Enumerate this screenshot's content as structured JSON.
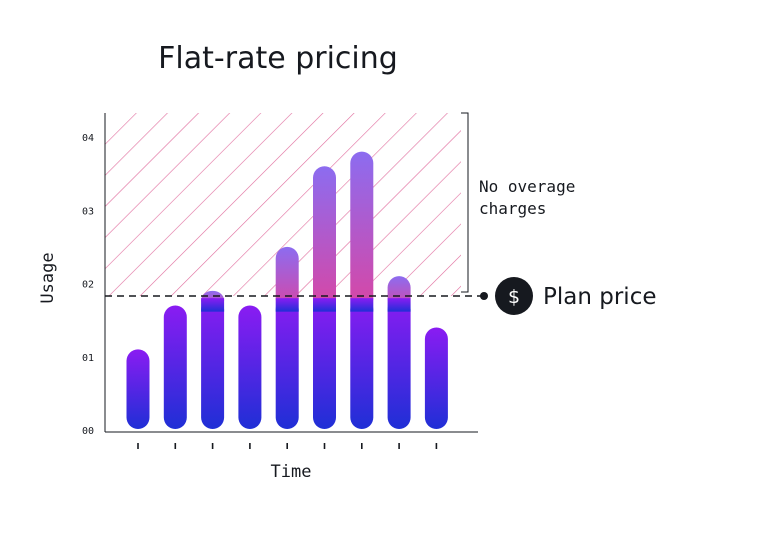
{
  "chart_data": {
    "type": "bar",
    "title": "Flat-rate pricing",
    "xlabel": "Time",
    "ylabel": "Usage",
    "y_ticks": [
      "00",
      "01",
      "02",
      "03",
      "04"
    ],
    "ylim": [
      0,
      4
    ],
    "categories": [
      "",
      "",
      "",
      "",
      "",
      "",
      "",
      "",
      ""
    ],
    "values": [
      1.1,
      1.7,
      1.9,
      1.7,
      2.5,
      3.6,
      3.8,
      2.1,
      1.4
    ],
    "plan_price": 1.8,
    "plan_price_label": "Plan price",
    "plan_price_icon": "dollar-icon",
    "plan_price_symbol": "$",
    "overage_annotation": [
      "No overage",
      "charges"
    ],
    "colors": {
      "bar_bottom": "#1f2fd6",
      "bar_top": "#8a1cf2",
      "overage_bottom": "#d846a4",
      "overage_top": "#8c6cf0",
      "hatch": "#e06b9c",
      "plan_line": "#16191f",
      "icon_bg": "#16191f"
    }
  }
}
